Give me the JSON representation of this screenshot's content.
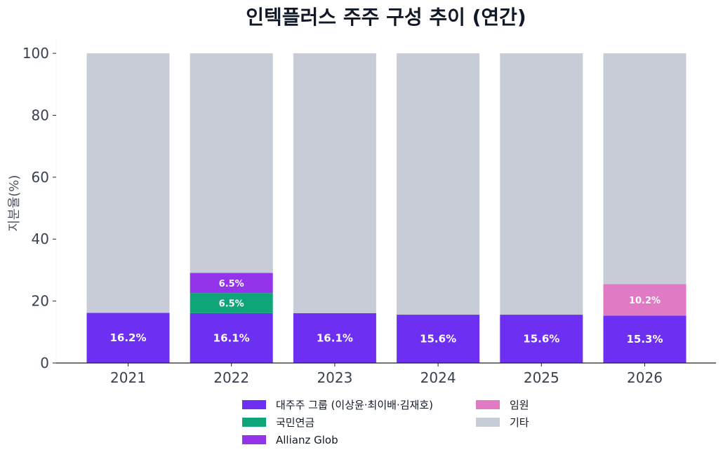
{
  "chart_data": {
    "type": "bar",
    "stacked": true,
    "title": "인텍플러스 주주 구성 추이 (연간)",
    "xlabel": "",
    "ylabel": "지분율(%)",
    "ylim": [
      0,
      105
    ],
    "yticks": [
      0,
      20,
      40,
      60,
      80,
      100
    ],
    "grid": false,
    "legend_position": "bottom",
    "categories": [
      "2021",
      "2022",
      "2023",
      "2024",
      "2025",
      "2026"
    ],
    "series": [
      {
        "name": "대주주 그룹 (이상윤·최이배·김재호)",
        "color": "#6d2ff2",
        "values": [
          16.2,
          16.1,
          16.1,
          15.6,
          15.6,
          15.3
        ],
        "labels": [
          "16.2%",
          "16.1%",
          "16.1%",
          "15.6%",
          "15.6%",
          "15.3%"
        ]
      },
      {
        "name": "국민연금",
        "color": "#0ea678",
        "values": [
          0,
          6.5,
          0,
          0,
          0,
          0
        ],
        "labels": [
          "",
          "6.5%",
          "",
          "",
          "",
          ""
        ]
      },
      {
        "name": "Allianz Glob",
        "color": "#9333ea",
        "values": [
          0,
          6.5,
          0,
          0,
          0,
          0
        ],
        "labels": [
          "",
          "6.5%",
          "",
          "",
          "",
          ""
        ]
      },
      {
        "name": "임원",
        "color": "#e07ac4",
        "values": [
          0,
          0,
          0,
          0,
          0,
          10.2
        ],
        "labels": [
          "",
          "",
          "",
          "",
          "",
          "10.2%"
        ]
      },
      {
        "name": "기타",
        "color": "#c8ccd6",
        "values": [
          83.8,
          70.9,
          83.9,
          84.4,
          84.4,
          74.5
        ],
        "labels": [
          "",
          "",
          "",
          "",
          "",
          ""
        ]
      }
    ]
  }
}
